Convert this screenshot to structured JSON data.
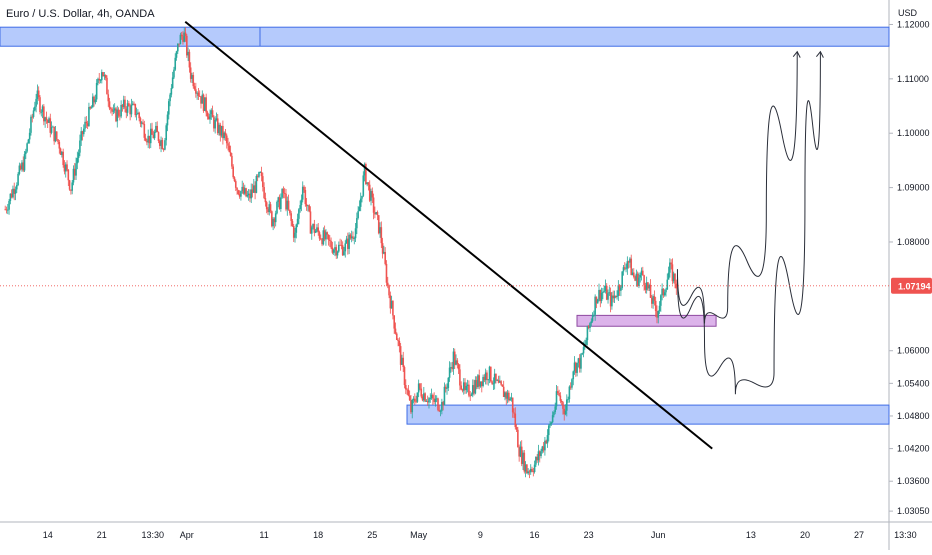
{
  "chart_data": {
    "type": "candlestick",
    "title": "Euro / U.S. Dollar, 4h, OANDA",
    "currency_label": "USD",
    "ylim": [
      1.0285,
      1.1245
    ],
    "y_ticks": [
      "1.12000",
      "1.11000",
      "1.10000",
      "1.09000",
      "1.08000",
      "1.07194",
      "1.06000",
      "1.05400",
      "1.04800",
      "1.04200",
      "1.03600",
      "1.03050"
    ],
    "last_price": 1.07194,
    "last_price_label": "1.07194",
    "x_ticks": [
      {
        "label": "14",
        "day": 14
      },
      {
        "label": "21",
        "day": 21
      },
      {
        "label": "13:30",
        "day": 27.6
      },
      {
        "label": "Apr",
        "day": 32
      },
      {
        "label": "11",
        "day": 42
      },
      {
        "label": "18",
        "day": 49
      },
      {
        "label": "25",
        "day": 56
      },
      {
        "label": "May",
        "day": 62
      },
      {
        "label": "9",
        "day": 70
      },
      {
        "label": "16",
        "day": 77
      },
      {
        "label": "23",
        "day": 84
      },
      {
        "label": "Jun",
        "day": 93
      },
      {
        "label": "13",
        "day": 105
      },
      {
        "label": "20",
        "day": 112
      },
      {
        "label": "27",
        "day": 119
      },
      {
        "label": "13:30",
        "day": 125
      }
    ],
    "price_path": [
      [
        8.5,
        1.086
      ],
      [
        11,
        1.095
      ],
      [
        12.5,
        1.107
      ],
      [
        14,
        1.102
      ],
      [
        15.5,
        1.098
      ],
      [
        17,
        1.09
      ],
      [
        18.5,
        1.1
      ],
      [
        20,
        1.106
      ],
      [
        21,
        1.112
      ],
      [
        22.5,
        1.103
      ],
      [
        24,
        1.105
      ],
      [
        25.5,
        1.104
      ],
      [
        27,
        1.099
      ],
      [
        28,
        1.1
      ],
      [
        29,
        1.098
      ],
      [
        30,
        1.109
      ],
      [
        31,
        1.117
      ],
      [
        31.6,
        1.1185
      ],
      [
        32.5,
        1.111
      ],
      [
        34,
        1.106
      ],
      [
        35.5,
        1.102
      ],
      [
        37,
        1.099
      ],
      [
        38.5,
        1.09
      ],
      [
        40,
        1.088
      ],
      [
        41.5,
        1.092
      ],
      [
        43,
        1.084
      ],
      [
        44.5,
        1.089
      ],
      [
        46,
        1.081
      ],
      [
        47,
        1.0905
      ],
      [
        48,
        1.083
      ],
      [
        49.5,
        1.081
      ],
      [
        51,
        1.079
      ],
      [
        52.5,
        1.079
      ],
      [
        54,
        1.083
      ],
      [
        55,
        1.093
      ],
      [
        56,
        1.087
      ],
      [
        57,
        1.082
      ],
      [
        58,
        1.072
      ],
      [
        59,
        1.064
      ],
      [
        60,
        1.056
      ],
      [
        61,
        1.049
      ],
      [
        62,
        1.053
      ],
      [
        63.5,
        1.051
      ],
      [
        65,
        1.05
      ],
      [
        66.5,
        1.059
      ],
      [
        68,
        1.052
      ],
      [
        69.5,
        1.054
      ],
      [
        71,
        1.056
      ],
      [
        72.5,
        1.053
      ],
      [
        74,
        1.051
      ],
      [
        75,
        1.042
      ],
      [
        76,
        1.038
      ],
      [
        77,
        1.039
      ],
      [
        78,
        1.042
      ],
      [
        79,
        1.046
      ],
      [
        80,
        1.052
      ],
      [
        81,
        1.049
      ],
      [
        82,
        1.057
      ],
      [
        83,
        1.058
      ],
      [
        84,
        1.064
      ],
      [
        85,
        1.07
      ],
      [
        86,
        1.071
      ],
      [
        87,
        1.069
      ],
      [
        88,
        1.072
      ],
      [
        89,
        1.077
      ],
      [
        90,
        1.073
      ],
      [
        91,
        1.074
      ],
      [
        92,
        1.07
      ],
      [
        92.8,
        1.067
      ],
      [
        93.5,
        1.07
      ],
      [
        94.5,
        1.075
      ],
      [
        95.5,
        1.0719
      ]
    ],
    "annotations": {
      "resistance_zone": {
        "y_low": 1.116,
        "y_high": 1.1195,
        "x_start": 0,
        "x_end": 130
      },
      "support_zone": {
        "y_low": 1.0465,
        "y_high": 1.05,
        "x_start": 60.5,
        "x_end": 130
      },
      "pivot_zone": {
        "y_low": 1.0645,
        "y_high": 1.0665,
        "x_start": 82.5,
        "x_end": 100.5
      },
      "trendline": {
        "x1": 31.8,
        "y1": 1.1205,
        "x2": 100,
        "y2": 1.042
      },
      "projection_paths": [
        {
          "points": [
            [
              95.5,
              1.075
            ],
            [
              99,
              1.065
            ],
            [
              102,
              1.068
            ],
            [
              107,
              1.085
            ],
            [
              111,
              1.115
            ]
          ]
        },
        {
          "points": [
            [
              95.5,
              1.074
            ],
            [
              99,
              1.062
            ],
            [
              103,
              1.052
            ],
            [
              108,
              1.056
            ],
            [
              112,
              1.088
            ],
            [
              114,
              1.115
            ]
          ]
        }
      ]
    },
    "colors": {
      "up": "#26a69a",
      "down": "#ef5350",
      "zone_blue": "#a8c1fb",
      "zone_blue_border": "#3f6ce6",
      "zone_purple": "#d6a6e6",
      "zone_purple_border": "#8e4aa0",
      "price_label_bg": "#ef5350",
      "axis_text": "#131722",
      "grid": "#e0e3eb"
    },
    "grid": false
  }
}
